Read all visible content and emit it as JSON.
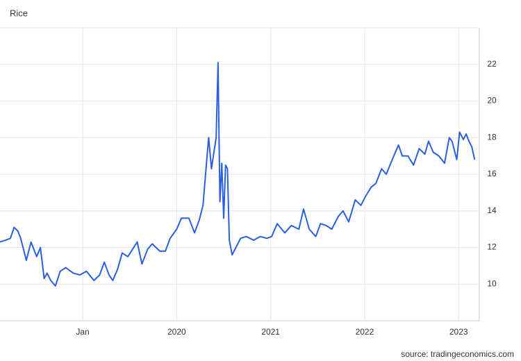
{
  "chart_data": {
    "type": "line",
    "title": "Rice",
    "source": "source: tradingeconomics.com",
    "color": "#2a5fe0",
    "grid": true,
    "xlim": [
      2018.12,
      2023.22
    ],
    "xticks": [
      {
        "value": 2019,
        "label": "Jan"
      },
      2020,
      2021,
      2022,
      2023
    ],
    "ylim": [
      8,
      24
    ],
    "yticks": [
      10,
      12,
      14,
      16,
      18,
      20,
      22
    ],
    "x": [
      2018.12,
      2018.18,
      2018.23,
      2018.27,
      2018.31,
      2018.34,
      2018.4,
      2018.45,
      2018.51,
      2018.55,
      2018.59,
      2018.62,
      2018.66,
      2018.71,
      2018.76,
      2018.82,
      2018.9,
      2018.97,
      2019.04,
      2019.12,
      2019.18,
      2019.23,
      2019.28,
      2019.32,
      2019.37,
      2019.42,
      2019.48,
      2019.58,
      2019.63,
      2019.69,
      2019.74,
      2019.82,
      2019.88,
      2019.93,
      2020.0,
      2020.05,
      2020.13,
      2020.19,
      2020.24,
      2020.28,
      2020.32,
      2020.34,
      2020.37,
      2020.39,
      2020.42,
      2020.44,
      2020.46,
      2020.48,
      2020.5,
      2020.52,
      2020.54,
      2020.56,
      2020.59,
      2020.63,
      2020.68,
      2020.74,
      2020.82,
      2020.89,
      2020.96,
      2021.01,
      2021.07,
      2021.15,
      2021.22,
      2021.3,
      2021.35,
      2021.41,
      2021.48,
      2021.53,
      2021.59,
      2021.65,
      2021.72,
      2021.77,
      2021.83,
      2021.9,
      2021.96,
      2022.01,
      2022.07,
      2022.12,
      2022.18,
      2022.23,
      2022.27,
      2022.31,
      2022.36,
      2022.4,
      2022.46,
      2022.52,
      2022.58,
      2022.64,
      2022.68,
      2022.73,
      2022.79,
      2022.85,
      2022.9,
      2022.93,
      2022.98,
      2023.01,
      2023.05,
      2023.08,
      2023.11,
      2023.14,
      2023.17
    ],
    "values": [
      12.3,
      12.4,
      12.5,
      13.1,
      12.9,
      12.5,
      11.3,
      12.3,
      11.5,
      12.0,
      10.3,
      10.6,
      10.2,
      9.9,
      10.7,
      10.9,
      10.6,
      10.5,
      10.7,
      10.2,
      10.5,
      11.2,
      10.5,
      10.2,
      10.8,
      11.7,
      11.5,
      12.3,
      11.1,
      11.9,
      12.2,
      11.8,
      11.8,
      12.5,
      13.0,
      13.6,
      13.6,
      12.8,
      13.5,
      14.3,
      16.8,
      18.0,
      16.3,
      17.0,
      18.0,
      22.1,
      14.5,
      16.6,
      13.6,
      16.5,
      16.3,
      12.4,
      11.6,
      12.0,
      12.5,
      12.6,
      12.4,
      12.6,
      12.5,
      12.6,
      13.3,
      12.8,
      13.2,
      13.0,
      14.1,
      13.0,
      12.6,
      13.3,
      13.2,
      13.0,
      13.7,
      14.0,
      13.4,
      14.6,
      14.3,
      14.8,
      15.3,
      15.5,
      16.3,
      16.0,
      16.5,
      17.0,
      17.6,
      17.0,
      17.0,
      16.5,
      17.4,
      17.1,
      17.8,
      17.2,
      17.0,
      16.6,
      18.0,
      17.8,
      16.8,
      18.3,
      17.9,
      18.2,
      17.8,
      17.5,
      16.8
    ]
  }
}
